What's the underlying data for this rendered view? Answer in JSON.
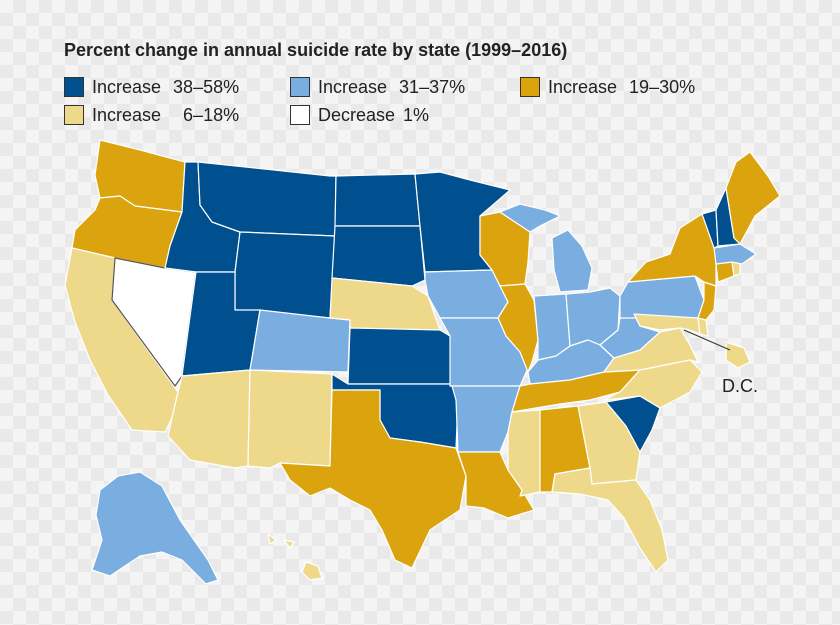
{
  "title": "Percent change in annual suicide rate by state (1999–2016)",
  "colors": {
    "increase_38_58": "#004f8f",
    "increase_31_37": "#7baee0",
    "increase_19_30": "#dba40f",
    "increase_6_18": "#eed98a",
    "decrease_1": "#ffffff"
  },
  "legend": [
    {
      "label": "Increase",
      "range": "38–58%",
      "color": "#004f8f"
    },
    {
      "label": "Increase",
      "range": "31–37%",
      "color": "#7baee0"
    },
    {
      "label": "Increase",
      "range": "19–30%",
      "color": "#dba40f"
    },
    {
      "label": "Increase",
      "range": "  6–18%",
      "color": "#eed98a"
    },
    {
      "label": "Decrease",
      "range": "1%",
      "color": "#ffffff"
    }
  ],
  "annotations": {
    "dc": "D.C."
  },
  "categories": {
    "increase_38_58": [
      "MT",
      "ID",
      "WY",
      "UT",
      "ND",
      "SD",
      "MN",
      "KS",
      "OK",
      "NH",
      "VT",
      "SC"
    ],
    "increase_31_37": [
      "CO",
      "IA",
      "MO",
      "AR",
      "MI",
      "IN",
      "OH",
      "KY",
      "WV",
      "PA",
      "MA",
      "AK"
    ],
    "increase_19_30": [
      "WA",
      "OR",
      "WI",
      "IL",
      "TX",
      "LA",
      "TN",
      "AL",
      "NY",
      "NJ",
      "CT",
      "ME"
    ],
    "increase_6_18": [
      "CA",
      "AZ",
      "NM",
      "NE",
      "MS",
      "GA",
      "FL",
      "NC",
      "VA",
      "MD",
      "DE",
      "RI",
      "HI",
      "DC"
    ],
    "decrease_1": [
      "NV"
    ]
  }
}
